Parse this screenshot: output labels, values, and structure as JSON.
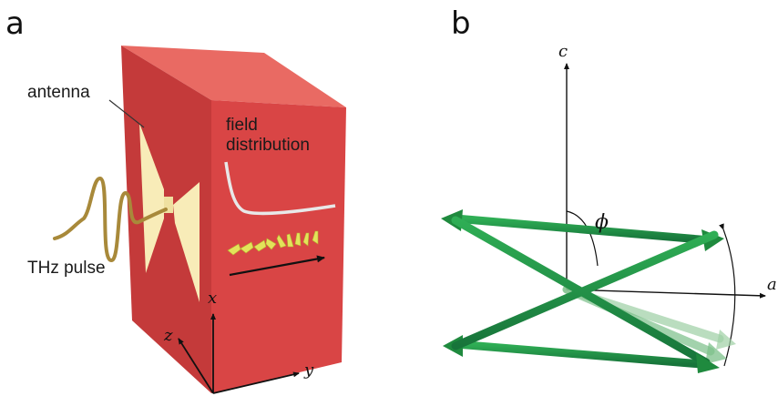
{
  "panel_a": {
    "label": "a",
    "antenna_label": "antenna",
    "field_label_line1": "field",
    "field_label_line2": "distribution",
    "pulse_label": "THz pulse",
    "axis_x": "x",
    "axis_y": "y",
    "axis_z": "z"
  },
  "panel_b": {
    "label": "b",
    "axis_c": "c",
    "axis_a": "a",
    "angle_symbol": "ϕ"
  },
  "colors": {
    "crystal_front": "#d94545",
    "crystal_top": "#ea6a62",
    "crystal_side": "#c43636",
    "antenna": "#f8ecb8",
    "pulse": "#a8893a",
    "field_arrows": "#e3e35a",
    "rod_green": "#1f8a3e"
  },
  "icons": [
    "arrow-icon"
  ]
}
